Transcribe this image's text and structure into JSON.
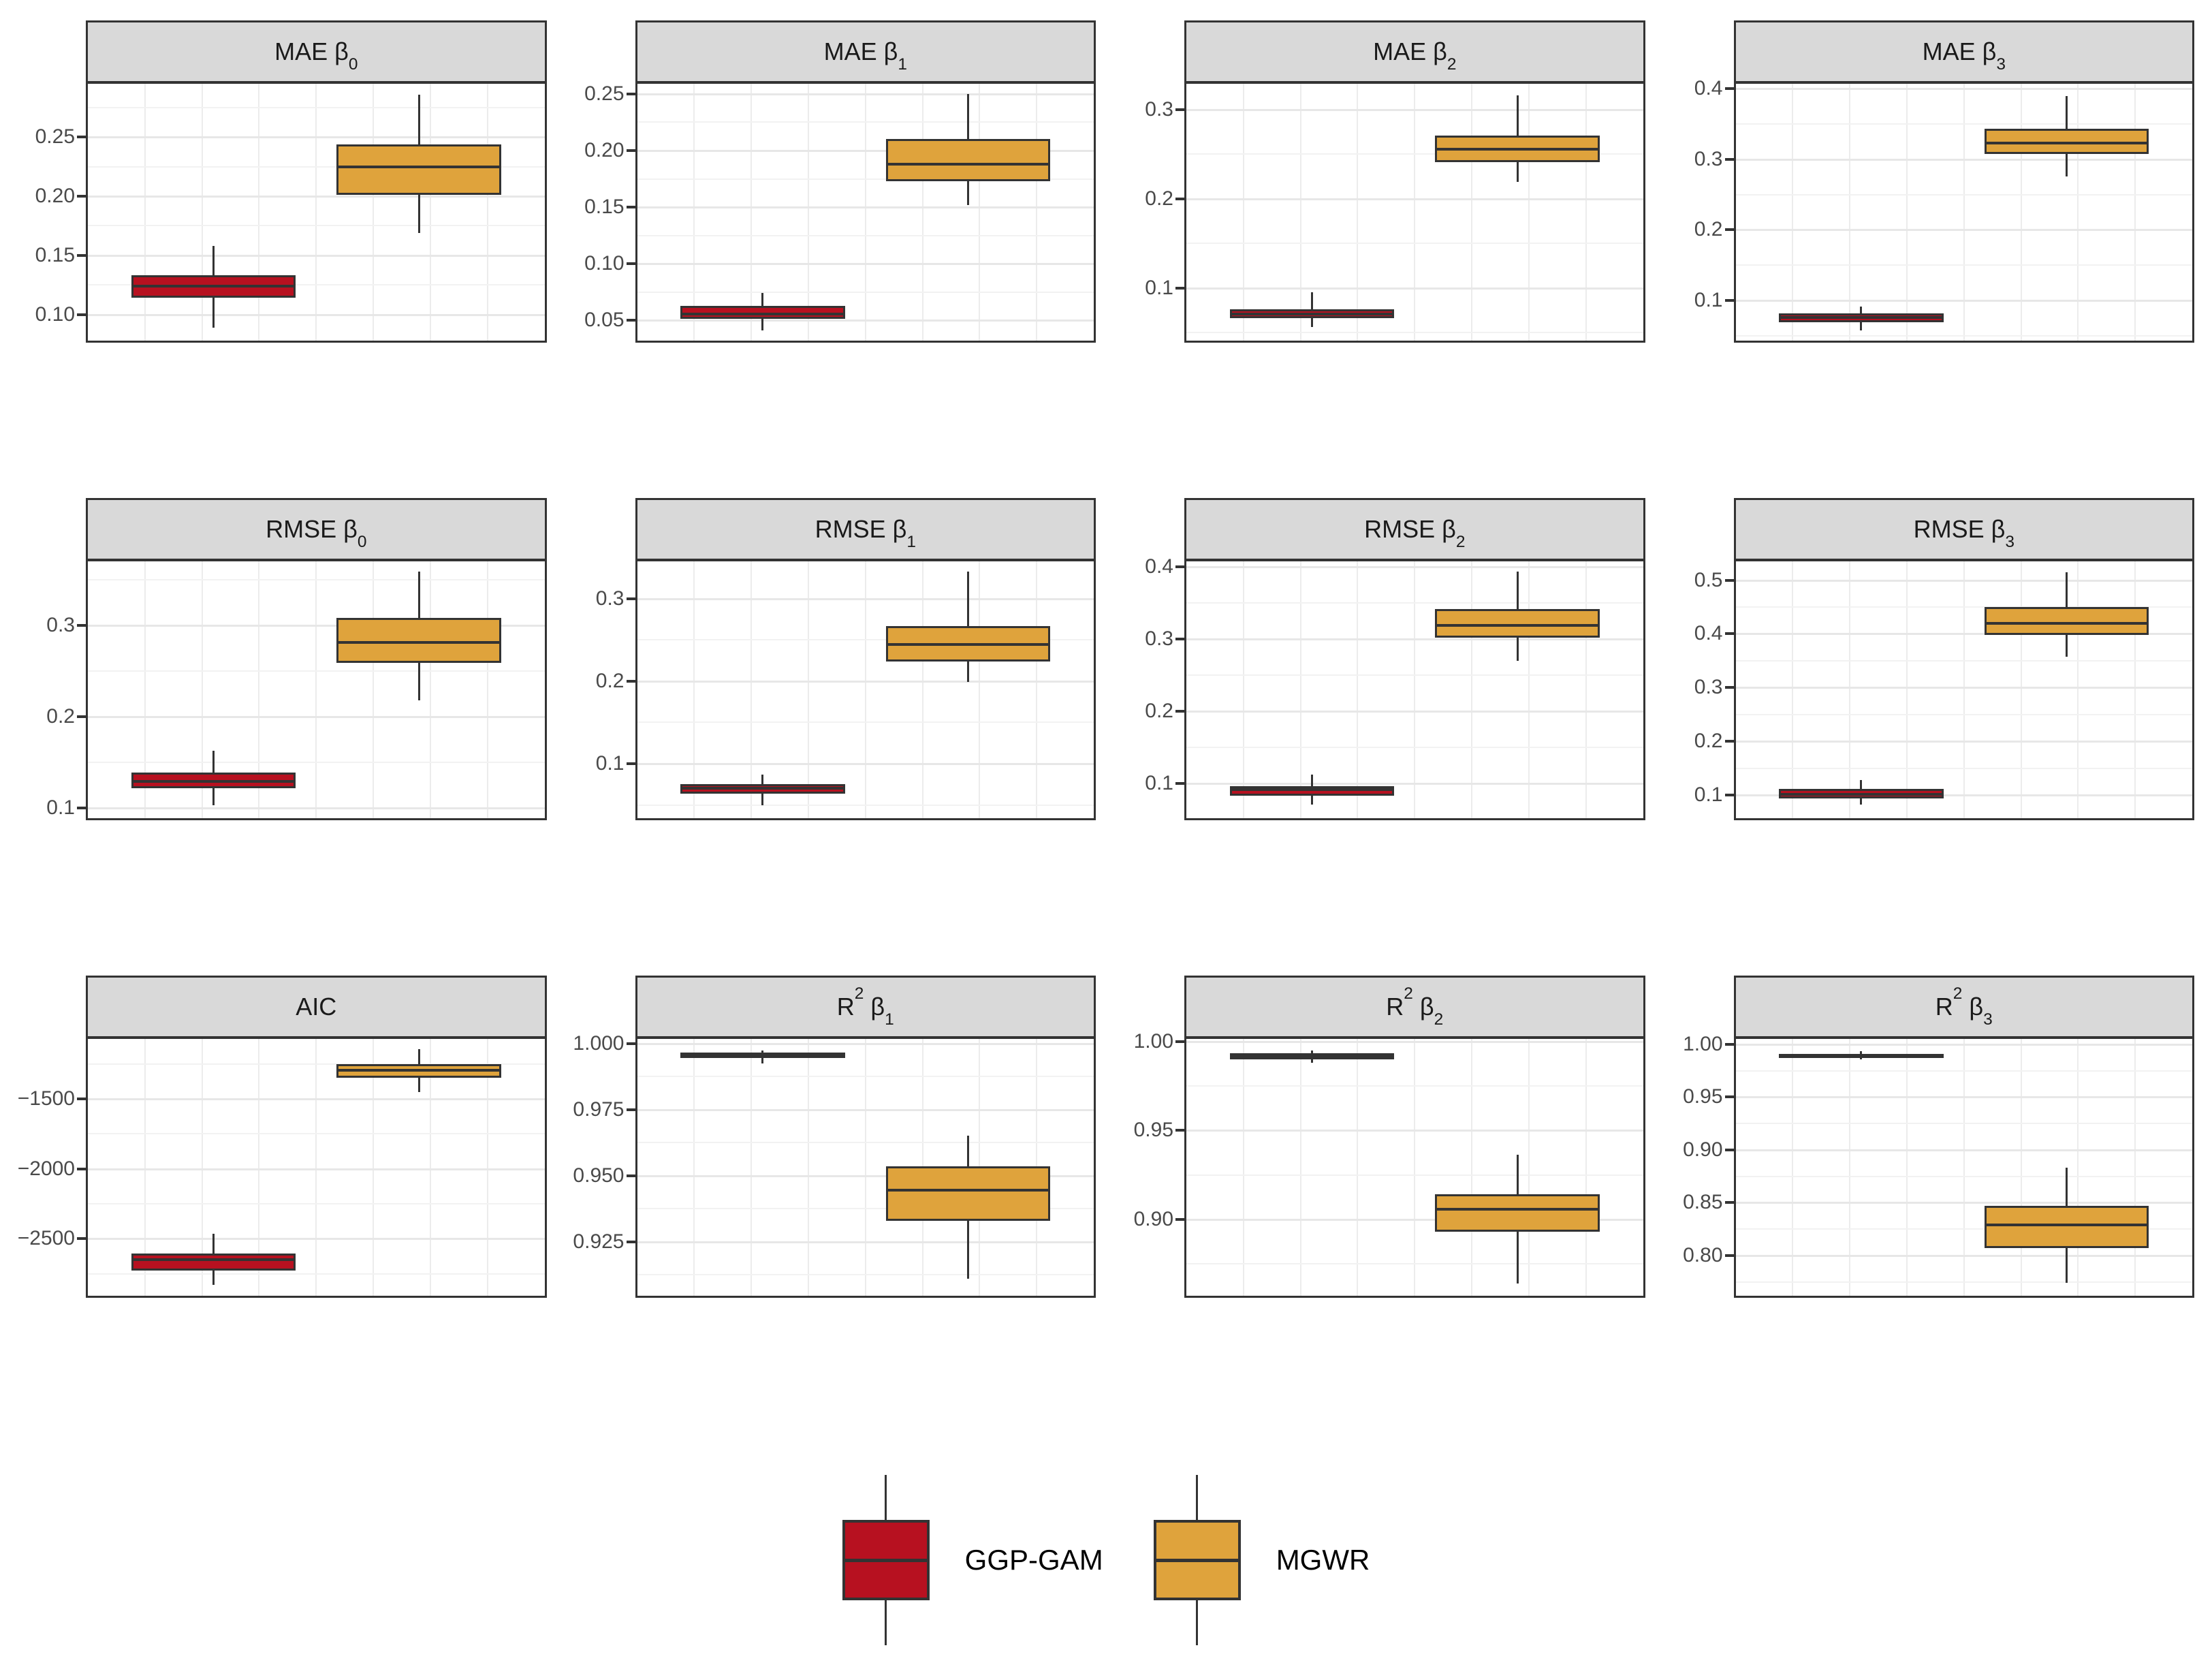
{
  "figure": {
    "kind": "faceted boxplot comparison",
    "facets_rows": 3,
    "facets_cols": 4,
    "background": "#ffffff",
    "strip_background": "#d9d9d9",
    "border_color": "#333333",
    "grid_major_color": "#e7e7e7",
    "grid_minor_color": "#f2f2f2",
    "tick_text_color": "#4a4a4a"
  },
  "legend": {
    "items": [
      {
        "label": "GGP-GAM",
        "color": "#b71120"
      },
      {
        "label": "MGWR",
        "color": "#dfa33c"
      }
    ]
  },
  "chart_data": {
    "type": "boxplot",
    "x_categories": [
      "GGP-GAM",
      "MGWR"
    ],
    "series_colors": {
      "GGP-GAM": "#b71120",
      "MGWR": "#dfa33c"
    },
    "legend_position": "bottom",
    "grid": "on",
    "panels": [
      {
        "title": {
          "metric": "MAE",
          "sup": null,
          "beta": "0"
        },
        "ylim": [
          0.078,
          0.295
        ],
        "ticks": [
          {
            "v": 0.1,
            "label": "0.10"
          },
          {
            "v": 0.15,
            "label": "0.15"
          },
          {
            "v": 0.2,
            "label": "0.20"
          },
          {
            "v": 0.25,
            "label": "0.25"
          }
        ],
        "boxes": [
          {
            "series": "GGP-GAM",
            "whisker_low": 0.089,
            "q1": 0.114,
            "median": 0.124,
            "q3": 0.133,
            "whisker_high": 0.158
          },
          {
            "series": "MGWR",
            "whisker_low": 0.169,
            "q1": 0.201,
            "median": 0.225,
            "q3": 0.244,
            "whisker_high": 0.286
          }
        ]
      },
      {
        "title": {
          "metric": "MAE",
          "sup": null,
          "beta": "1"
        },
        "ylim": [
          0.032,
          0.259
        ],
        "ticks": [
          {
            "v": 0.05,
            "label": "0.05"
          },
          {
            "v": 0.1,
            "label": "0.10"
          },
          {
            "v": 0.15,
            "label": "0.15"
          },
          {
            "v": 0.2,
            "label": "0.20"
          },
          {
            "v": 0.25,
            "label": "0.25"
          }
        ],
        "boxes": [
          {
            "series": "GGP-GAM",
            "whisker_low": 0.041,
            "q1": 0.051,
            "median": 0.0555,
            "q3": 0.0625,
            "whisker_high": 0.074
          },
          {
            "series": "MGWR",
            "whisker_low": 0.152,
            "q1": 0.173,
            "median": 0.188,
            "q3": 0.21,
            "whisker_high": 0.25
          }
        ]
      },
      {
        "title": {
          "metric": "MAE",
          "sup": null,
          "beta": "2"
        },
        "ylim": [
          0.041,
          0.329
        ],
        "ticks": [
          {
            "v": 0.1,
            "label": "0.1"
          },
          {
            "v": 0.2,
            "label": "0.2"
          },
          {
            "v": 0.3,
            "label": "0.3"
          }
        ],
        "boxes": [
          {
            "series": "GGP-GAM",
            "whisker_low": 0.056,
            "q1": 0.066,
            "median": 0.071,
            "q3": 0.076,
            "whisker_high": 0.095
          },
          {
            "series": "MGWR",
            "whisker_low": 0.219,
            "q1": 0.241,
            "median": 0.256,
            "q3": 0.271,
            "whisker_high": 0.316
          }
        ]
      },
      {
        "title": {
          "metric": "MAE",
          "sup": null,
          "beta": "3"
        },
        "ylim": [
          0.043,
          0.407
        ],
        "ticks": [
          {
            "v": 0.1,
            "label": "0.1"
          },
          {
            "v": 0.2,
            "label": "0.2"
          },
          {
            "v": 0.3,
            "label": "0.3"
          },
          {
            "v": 0.4,
            "label": "0.4"
          }
        ],
        "boxes": [
          {
            "series": "GGP-GAM",
            "whisker_low": 0.057,
            "q1": 0.069,
            "median": 0.0755,
            "q3": 0.082,
            "whisker_high": 0.091
          },
          {
            "series": "MGWR",
            "whisker_low": 0.276,
            "q1": 0.308,
            "median": 0.323,
            "q3": 0.343,
            "whisker_high": 0.39
          }
        ]
      },
      {
        "title": {
          "metric": "RMSE",
          "sup": null,
          "beta": "0"
        },
        "ylim": [
          0.089,
          0.37
        ],
        "ticks": [
          {
            "v": 0.1,
            "label": "0.1"
          },
          {
            "v": 0.2,
            "label": "0.2"
          },
          {
            "v": 0.3,
            "label": "0.3"
          }
        ],
        "boxes": [
          {
            "series": "GGP-GAM",
            "whisker_low": 0.103,
            "q1": 0.122,
            "median": 0.129,
            "q3": 0.139,
            "whisker_high": 0.163
          },
          {
            "series": "MGWR",
            "whisker_low": 0.218,
            "q1": 0.259,
            "median": 0.281,
            "q3": 0.308,
            "whisker_high": 0.359
          }
        ]
      },
      {
        "title": {
          "metric": "RMSE",
          "sup": null,
          "beta": "1"
        },
        "ylim": [
          0.034,
          0.345
        ],
        "ticks": [
          {
            "v": 0.1,
            "label": "0.1"
          },
          {
            "v": 0.2,
            "label": "0.2"
          },
          {
            "v": 0.3,
            "label": "0.3"
          }
        ],
        "boxes": [
          {
            "series": "GGP-GAM",
            "whisker_low": 0.05,
            "q1": 0.064,
            "median": 0.07,
            "q3": 0.075,
            "whisker_high": 0.087
          },
          {
            "series": "MGWR",
            "whisker_low": 0.199,
            "q1": 0.224,
            "median": 0.244,
            "q3": 0.267,
            "whisker_high": 0.333
          }
        ]
      },
      {
        "title": {
          "metric": "RMSE",
          "sup": null,
          "beta": "2"
        },
        "ylim": [
          0.052,
          0.408
        ],
        "ticks": [
          {
            "v": 0.1,
            "label": "0.1"
          },
          {
            "v": 0.2,
            "label": "0.2"
          },
          {
            "v": 0.3,
            "label": "0.3"
          },
          {
            "v": 0.4,
            "label": "0.4"
          }
        ],
        "boxes": [
          {
            "series": "GGP-GAM",
            "whisker_low": 0.071,
            "q1": 0.083,
            "median": 0.092,
            "q3": 0.096,
            "whisker_high": 0.112
          },
          {
            "series": "MGWR",
            "whisker_low": 0.27,
            "q1": 0.302,
            "median": 0.319,
            "q3": 0.342,
            "whisker_high": 0.394
          }
        ]
      },
      {
        "title": {
          "metric": "RMSE",
          "sup": null,
          "beta": "3"
        },
        "ylim": [
          0.057,
          0.535
        ],
        "ticks": [
          {
            "v": 0.1,
            "label": "0.1"
          },
          {
            "v": 0.2,
            "label": "0.2"
          },
          {
            "v": 0.3,
            "label": "0.3"
          },
          {
            "v": 0.4,
            "label": "0.4"
          },
          {
            "v": 0.5,
            "label": "0.5"
          }
        ],
        "boxes": [
          {
            "series": "GGP-GAM",
            "whisker_low": 0.082,
            "q1": 0.094,
            "median": 0.102,
            "q3": 0.111,
            "whisker_high": 0.128
          },
          {
            "series": "MGWR",
            "whisker_low": 0.358,
            "q1": 0.398,
            "median": 0.419,
            "q3": 0.45,
            "whisker_high": 0.515
          }
        ]
      },
      {
        "title": {
          "metric": "AIC",
          "sup": null,
          "beta": null
        },
        "ylim": [
          -2907,
          -1071
        ],
        "ticks": [
          {
            "v": -2500,
            "label": "−2500"
          },
          {
            "v": -2000,
            "label": "−2000"
          },
          {
            "v": -1500,
            "label": "−1500"
          }
        ],
        "boxes": [
          {
            "series": "GGP-GAM",
            "whisker_low": -2830,
            "q1": -2726,
            "median": -2648,
            "q3": -2604,
            "whisker_high": -2462
          },
          {
            "series": "MGWR",
            "whisker_low": -1450,
            "q1": -1351,
            "median": -1297,
            "q3": -1252,
            "whisker_high": -1144
          }
        ]
      },
      {
        "title": {
          "metric": "R",
          "sup": "2",
          "beta": "1"
        },
        "ylim": [
          0.9046,
          1.0017
        ],
        "ticks": [
          {
            "v": 0.925,
            "label": "0.925"
          },
          {
            "v": 0.95,
            "label": "0.950"
          },
          {
            "v": 0.975,
            "label": "0.975"
          },
          {
            "v": 1.0,
            "label": "1.000"
          }
        ],
        "boxes": [
          {
            "series": "GGP-GAM",
            "whisker_low": 0.9924,
            "q1": 0.9944,
            "median": 0.9955,
            "q3": 0.9965,
            "whisker_high": 0.9974
          },
          {
            "series": "MGWR",
            "whisker_low": 0.911,
            "q1": 0.933,
            "median": 0.9445,
            "q3": 0.9535,
            "whisker_high": 0.965
          }
        ]
      },
      {
        "title": {
          "metric": "R",
          "sup": "2",
          "beta": "2"
        },
        "ylim": [
          0.857,
          1.0015
        ],
        "ticks": [
          {
            "v": 0.9,
            "label": "0.90"
          },
          {
            "v": 0.95,
            "label": "0.95"
          },
          {
            "v": 1.0,
            "label": "1.00"
          }
        ],
        "boxes": [
          {
            "series": "GGP-GAM",
            "whisker_low": 0.988,
            "q1": 0.99,
            "median": 0.992,
            "q3": 0.9936,
            "whisker_high": 0.995
          },
          {
            "series": "MGWR",
            "whisker_low": 0.864,
            "q1": 0.893,
            "median": 0.9055,
            "q3": 0.914,
            "whisker_high": 0.9365
          }
        ]
      },
      {
        "title": {
          "metric": "R",
          "sup": "2",
          "beta": "3"
        },
        "ylim": [
          0.762,
          1.005
        ],
        "ticks": [
          {
            "v": 0.8,
            "label": "0.80"
          },
          {
            "v": 0.85,
            "label": "0.85"
          },
          {
            "v": 0.9,
            "label": "0.90"
          },
          {
            "v": 0.95,
            "label": "0.95"
          },
          {
            "v": 1.0,
            "label": "1.00"
          }
        ],
        "boxes": [
          {
            "series": "GGP-GAM",
            "whisker_low": 0.9855,
            "q1": 0.987,
            "median": 0.989,
            "q3": 0.991,
            "whisker_high": 0.9935
          },
          {
            "series": "MGWR",
            "whisker_low": 0.774,
            "q1": 0.807,
            "median": 0.829,
            "q3": 0.847,
            "whisker_high": 0.883
          }
        ]
      }
    ]
  }
}
